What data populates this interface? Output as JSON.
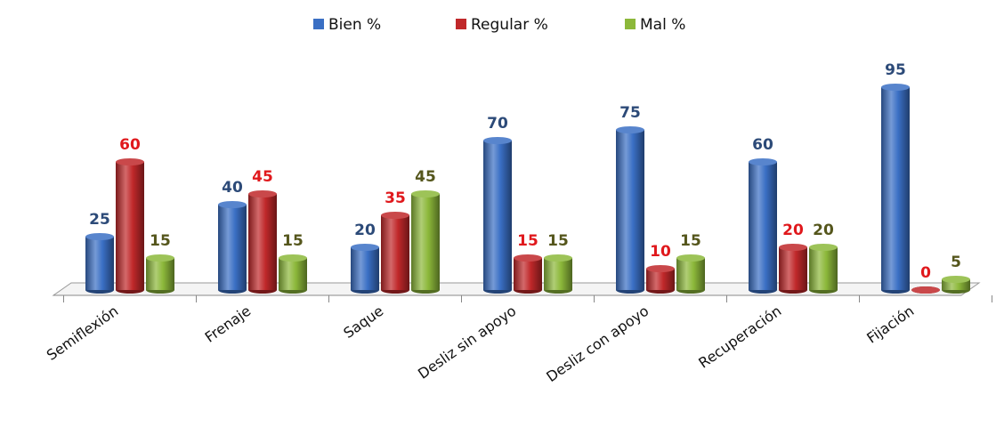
{
  "chart_data": {
    "type": "bar",
    "categories": [
      "Semiflexión",
      "Frenaje",
      "Saque",
      "Desliz sin apoyo",
      "Desliz con apoyo",
      "Recuperación",
      "Fijación"
    ],
    "series": [
      {
        "name": "Bien %",
        "color": "#3a6fc4",
        "label_color": "#2c4a78",
        "values": [
          25,
          40,
          20,
          70,
          75,
          60,
          95
        ]
      },
      {
        "name": "Regular %",
        "color": "#c0282a",
        "label_color": "#e0181c",
        "values": [
          60,
          45,
          35,
          15,
          10,
          20,
          0
        ]
      },
      {
        "name": "Mal %",
        "color": "#8cb83a",
        "label_color": "#55561c",
        "values": [
          15,
          15,
          45,
          15,
          15,
          20,
          5
        ]
      }
    ],
    "legend": "top"
  }
}
